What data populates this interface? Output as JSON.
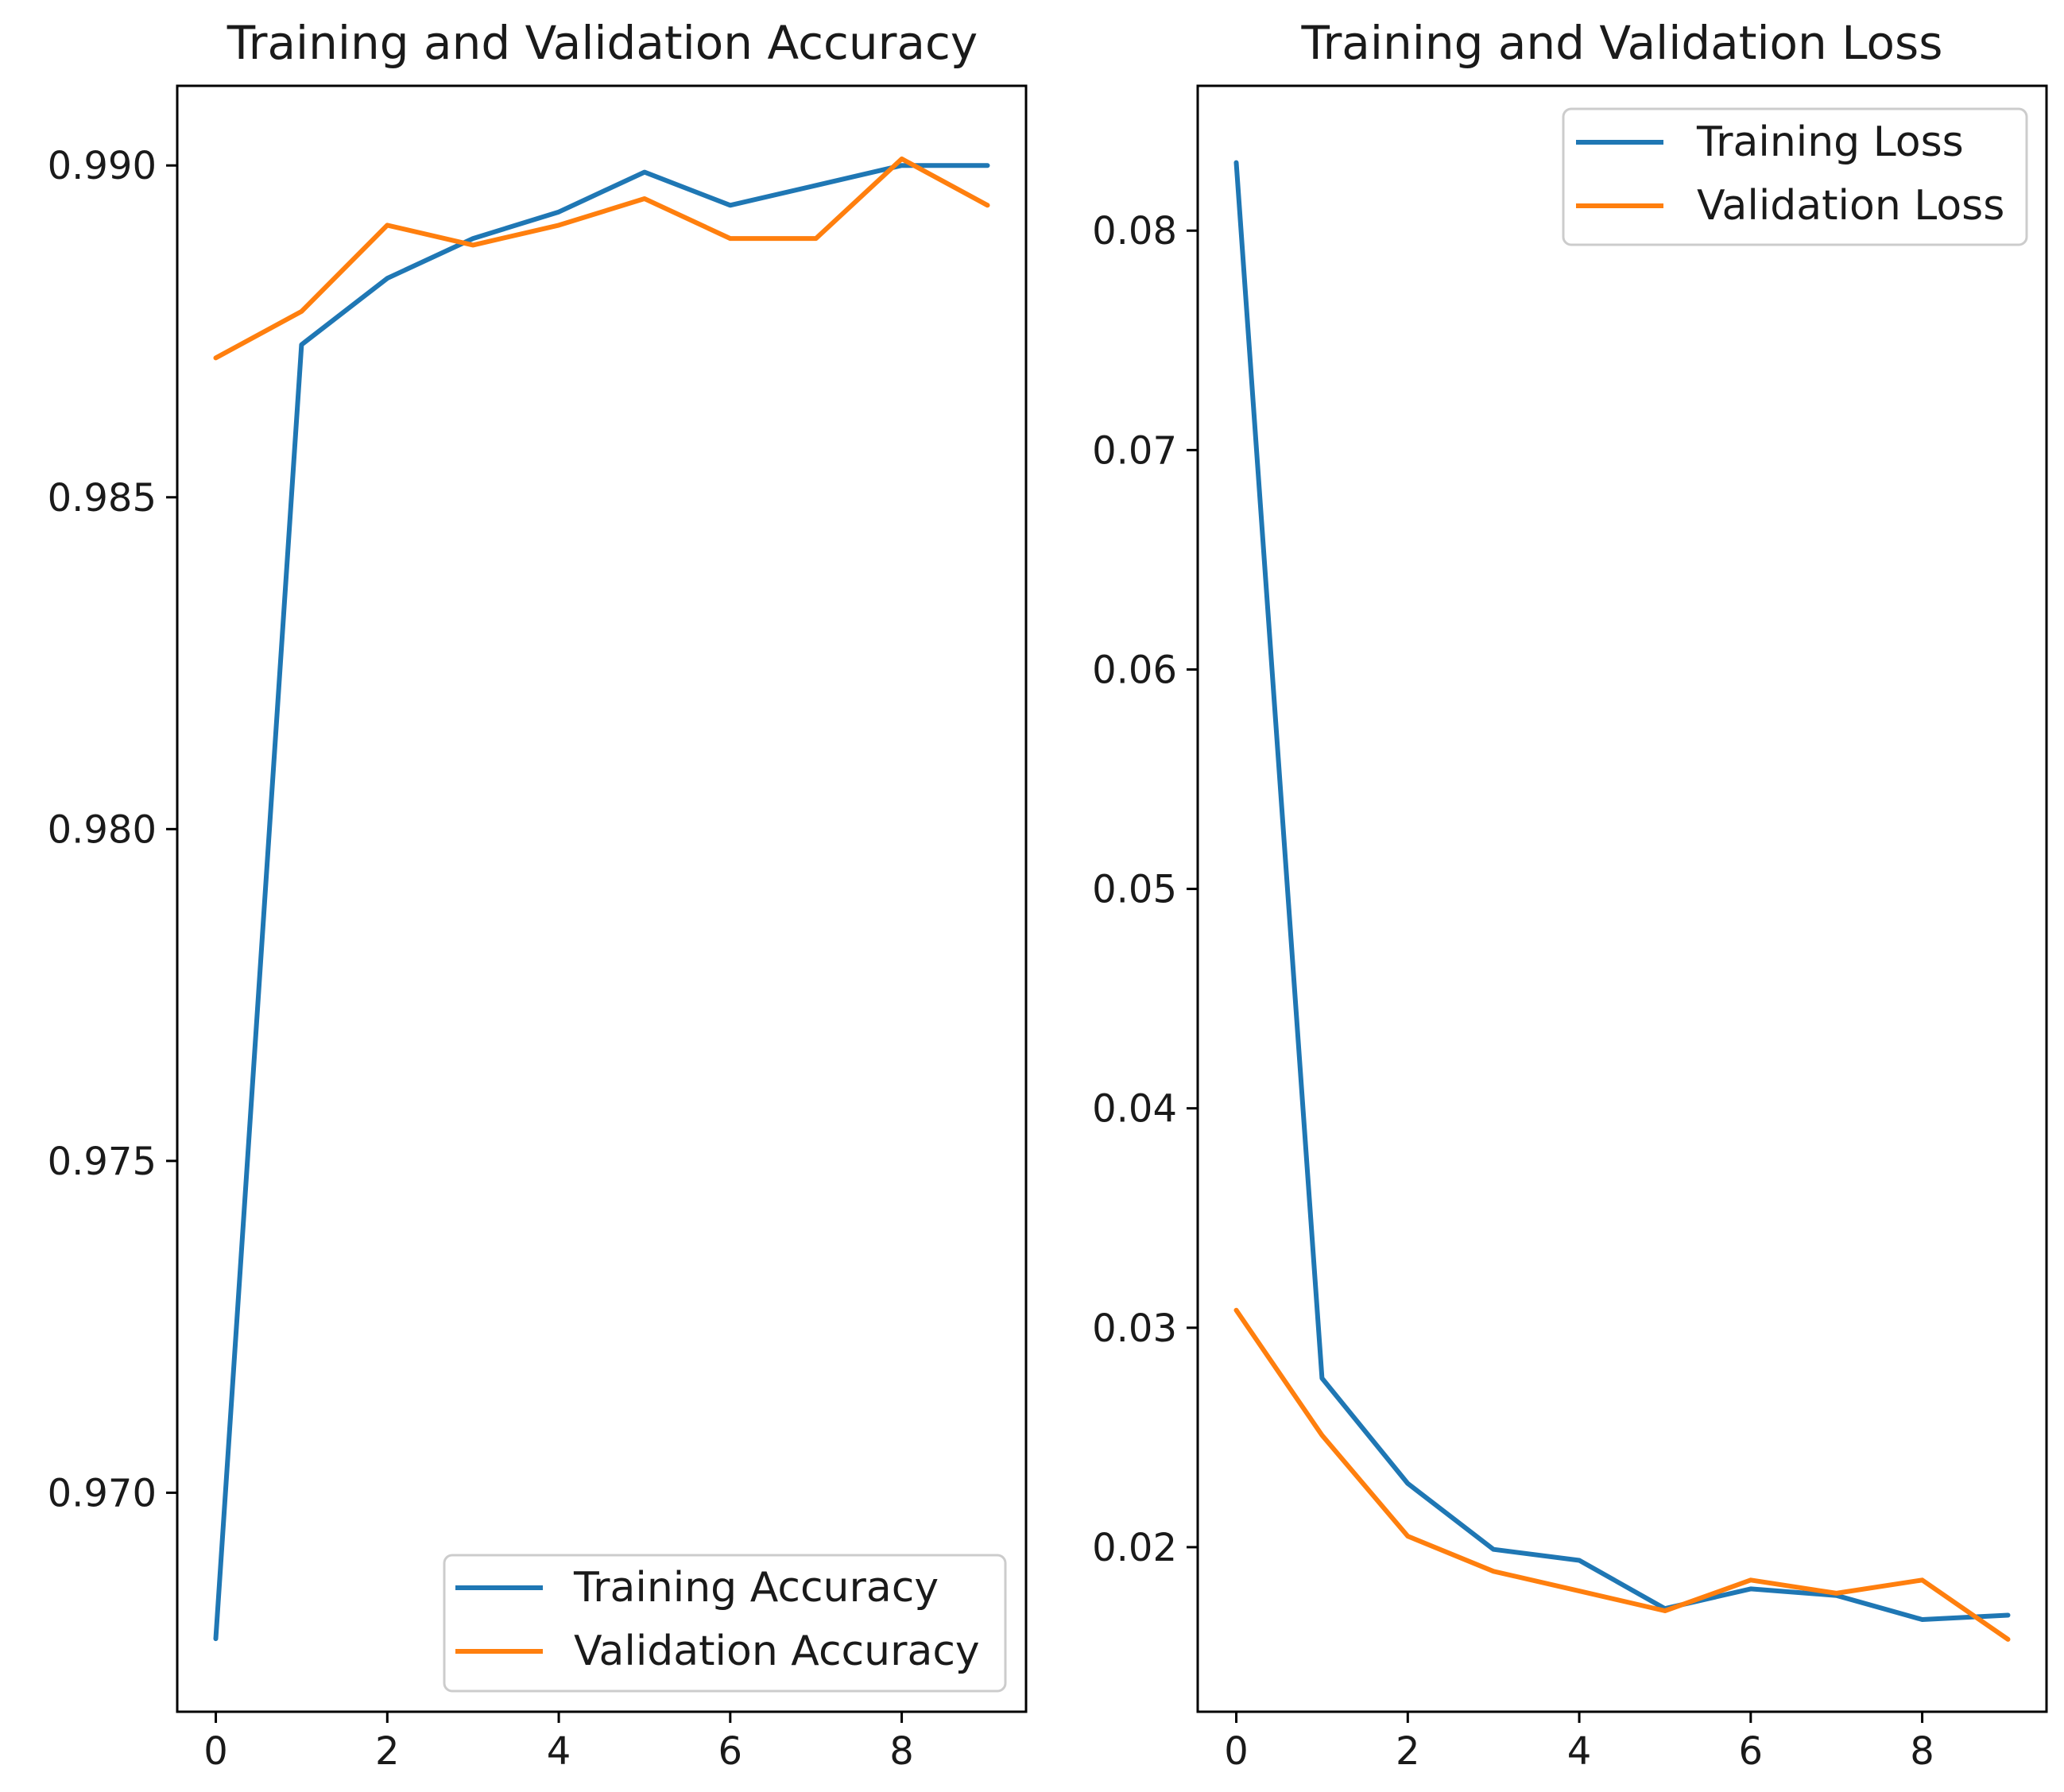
{
  "colors": {
    "training": "#1f77b4",
    "validation": "#ff7f0e"
  },
  "chart_data": [
    {
      "type": "line",
      "title": "Training and Validation Accuracy",
      "xlabel": "",
      "ylabel": "",
      "xlim": [
        -0.45,
        9.45
      ],
      "ylim": [
        0.9667,
        0.9912
      ],
      "xticks": [
        0,
        2,
        4,
        6,
        8
      ],
      "xtick_labels": [
        "0",
        "2",
        "4",
        "6",
        "8"
      ],
      "yticks": [
        0.97,
        0.975,
        0.98,
        0.985,
        0.99
      ],
      "ytick_labels": [
        "0.970",
        "0.975",
        "0.980",
        "0.985",
        "0.990"
      ],
      "grid": false,
      "legend_position": "lower-right",
      "x": [
        0,
        1,
        2,
        3,
        4,
        5,
        6,
        7,
        8,
        9
      ],
      "series": [
        {
          "name": "Training Accuracy",
          "color_key": "training",
          "values": [
            0.9678,
            0.9873,
            0.9883,
            0.9889,
            0.9893,
            0.9899,
            0.9894,
            0.9897,
            0.99,
            0.99
          ]
        },
        {
          "name": "Validation Accuracy",
          "color_key": "validation",
          "values": [
            0.9871,
            0.9878,
            0.9891,
            0.9888,
            0.9891,
            0.9895,
            0.9889,
            0.9889,
            0.9901,
            0.9894
          ]
        }
      ]
    },
    {
      "type": "line",
      "title": "Training and Validation Loss",
      "xlabel": "",
      "ylabel": "",
      "xlim": [
        -0.45,
        9.45
      ],
      "ylim": [
        0.0125,
        0.0866
      ],
      "xticks": [
        0,
        2,
        4,
        6,
        8
      ],
      "xtick_labels": [
        "0",
        "2",
        "4",
        "6",
        "8"
      ],
      "yticks": [
        0.02,
        0.03,
        0.04,
        0.05,
        0.06,
        0.07,
        0.08
      ],
      "ytick_labels": [
        "0.02",
        "0.03",
        "0.04",
        "0.05",
        "0.06",
        "0.07",
        "0.08"
      ],
      "grid": false,
      "legend_position": "upper-right",
      "x": [
        0,
        1,
        2,
        3,
        4,
        5,
        6,
        7,
        8,
        9
      ],
      "series": [
        {
          "name": "Training Loss",
          "color_key": "training",
          "values": [
            0.0831,
            0.0277,
            0.0229,
            0.0199,
            0.0194,
            0.0172,
            0.0181,
            0.0178,
            0.0167,
            0.0169
          ]
        },
        {
          "name": "Validation Loss",
          "color_key": "validation",
          "values": [
            0.0308,
            0.0251,
            0.0205,
            0.0189,
            0.018,
            0.0171,
            0.0185,
            0.0179,
            0.0185,
            0.0158
          ]
        }
      ]
    }
  ]
}
